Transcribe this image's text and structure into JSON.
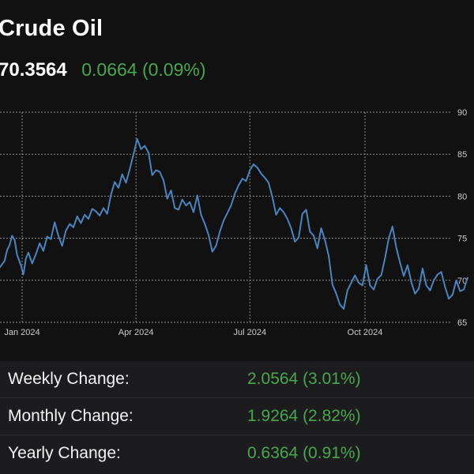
{
  "header": {
    "title": "Crude Oil",
    "price": "70.3564",
    "change": "0.0664 (0.09%)"
  },
  "colors": {
    "background": "#111111",
    "line": "#4a84be",
    "positive": "#48a74d",
    "grid": "#8a8a8a",
    "axis_text": "#cccccc",
    "panel": "#1c1c1e"
  },
  "chart_data": {
    "type": "line",
    "title": "",
    "xlabel": "",
    "ylabel": "",
    "ylim": [
      65,
      90
    ],
    "y_ticks": [
      65,
      70,
      75,
      80,
      85,
      90
    ],
    "y_axis_position": "right",
    "x_ticks": [
      {
        "date": "2024-01-01",
        "label": "Jan 2024"
      },
      {
        "date": "2024-04-01",
        "label": "Apr 2024"
      },
      {
        "date": "2024-07-01",
        "label": "Jul 2024"
      },
      {
        "date": "2024-10-01",
        "label": "Oct 2024"
      }
    ],
    "grid": true,
    "series": [
      {
        "x": [
          "2023-12-14",
          "2023-12-18",
          "2023-12-20",
          "2023-12-22",
          "2023-12-24",
          "2023-12-26",
          "2023-12-28",
          "2023-12-31",
          "2024-01-02",
          "2024-01-04",
          "2024-01-06",
          "2024-01-09",
          "2024-01-12",
          "2024-01-15",
          "2024-01-18",
          "2024-01-21",
          "2024-01-24",
          "2024-01-27",
          "2024-01-30",
          "2024-02-02",
          "2024-02-05",
          "2024-02-08",
          "2024-02-11",
          "2024-02-14",
          "2024-02-17",
          "2024-02-20",
          "2024-02-23",
          "2024-02-26",
          "2024-02-29",
          "2024-03-03",
          "2024-03-06",
          "2024-03-09",
          "2024-03-12",
          "2024-03-15",
          "2024-03-18",
          "2024-03-21",
          "2024-03-24",
          "2024-03-27",
          "2024-03-30",
          "2024-04-02",
          "2024-04-05",
          "2024-04-08",
          "2024-04-11",
          "2024-04-14",
          "2024-04-17",
          "2024-04-20",
          "2024-04-23",
          "2024-04-26",
          "2024-04-29",
          "2024-05-02",
          "2024-05-05",
          "2024-05-08",
          "2024-05-11",
          "2024-05-14",
          "2024-05-17",
          "2024-05-20",
          "2024-05-23",
          "2024-05-26",
          "2024-05-29",
          "2024-06-01",
          "2024-06-04",
          "2024-06-07",
          "2024-06-10",
          "2024-06-13",
          "2024-06-16",
          "2024-06-19",
          "2024-06-22",
          "2024-06-25",
          "2024-06-28",
          "2024-07-01",
          "2024-07-04",
          "2024-07-07",
          "2024-07-10",
          "2024-07-13",
          "2024-07-16",
          "2024-07-19",
          "2024-07-22",
          "2024-07-25",
          "2024-07-28",
          "2024-07-31",
          "2024-08-03",
          "2024-08-06",
          "2024-08-09",
          "2024-08-12",
          "2024-08-15",
          "2024-08-18",
          "2024-08-21",
          "2024-08-24",
          "2024-08-27",
          "2024-08-30",
          "2024-09-02",
          "2024-09-05",
          "2024-09-08",
          "2024-09-11",
          "2024-09-14",
          "2024-09-17",
          "2024-09-20",
          "2024-09-23",
          "2024-09-26",
          "2024-09-29",
          "2024-10-02",
          "2024-10-05",
          "2024-10-08",
          "2024-10-11",
          "2024-10-14",
          "2024-10-17",
          "2024-10-20",
          "2024-10-23",
          "2024-10-26",
          "2024-10-29",
          "2024-11-01",
          "2024-11-04",
          "2024-11-07",
          "2024-11-10",
          "2024-11-13",
          "2024-11-16",
          "2024-11-19",
          "2024-11-22",
          "2024-11-25",
          "2024-11-28",
          "2024-12-01",
          "2024-12-04",
          "2024-12-07",
          "2024-12-10",
          "2024-12-13",
          "2024-12-16",
          "2024-12-19",
          "2024-12-22"
        ],
        "values": [
          71.5,
          72.3,
          73.6,
          74.2,
          75.3,
          74.8,
          73.0,
          71.8,
          70.7,
          72.6,
          73.3,
          72.0,
          73.1,
          74.4,
          73.5,
          75.2,
          74.9,
          76.9,
          75.3,
          74.1,
          75.9,
          76.7,
          76.3,
          77.6,
          76.8,
          77.8,
          77.3,
          78.5,
          78.2,
          77.7,
          78.6,
          77.9,
          80.2,
          81.7,
          81.0,
          82.6,
          81.6,
          83.2,
          85.0,
          86.8,
          85.6,
          86.0,
          85.2,
          82.5,
          83.1,
          82.9,
          81.9,
          79.7,
          80.7,
          78.6,
          78.4,
          79.6,
          78.9,
          79.3,
          78.1,
          80.1,
          77.8,
          76.7,
          75.4,
          73.4,
          74.1,
          75.8,
          77.1,
          78.0,
          78.9,
          80.3,
          81.3,
          82.1,
          81.8,
          83.1,
          83.8,
          83.4,
          82.7,
          82.2,
          81.6,
          79.9,
          77.8,
          78.6,
          78.1,
          77.3,
          76.2,
          74.6,
          75.1,
          77.9,
          78.4,
          75.8,
          75.3,
          73.8,
          76.2,
          74.8,
          72.9,
          69.5,
          68.4,
          67.1,
          66.6,
          68.8,
          69.7,
          70.6,
          69.7,
          69.4,
          71.8,
          69.4,
          68.9,
          70.2,
          70.6,
          72.6,
          75.0,
          76.4,
          73.9,
          72.1,
          70.5,
          71.8,
          69.8,
          68.4,
          69.0,
          71.4,
          69.4,
          68.8,
          70.0,
          70.7,
          71.0,
          69.2,
          67.8,
          68.3,
          70.0,
          68.7,
          68.9,
          70.3
        ]
      }
    ]
  },
  "stats": [
    {
      "label": "Weekly Change:",
      "value": "2.0564 (3.01%)"
    },
    {
      "label": "Monthly Change:",
      "value": "1.9264 (2.82%)"
    },
    {
      "label": "Yearly Change:",
      "value": "0.6364 (0.91%)"
    }
  ]
}
